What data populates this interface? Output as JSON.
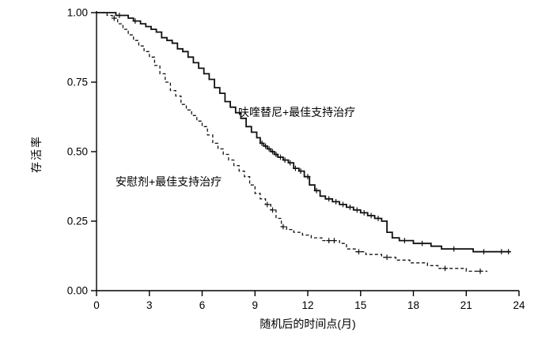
{
  "labels": {
    "ylabel": "存活率",
    "xlabel": "随机后的时间点(月)",
    "solid_annotation": "呋喹替尼+最佳支持治疗",
    "dashed_annotation": "安慰剂+最佳支持治疗"
  },
  "colors": {
    "background": "#ffffff",
    "line": "#111111",
    "axis": "#000000"
  },
  "chart_data": {
    "type": "line",
    "subtype": "kaplan-meier-step",
    "title": "",
    "xlabel": "随机后的时间点(月)",
    "ylabel": "存活率",
    "xlim": [
      0,
      24
    ],
    "ylim": [
      0,
      1.0
    ],
    "xticks": [
      0,
      3,
      6,
      9,
      12,
      15,
      18,
      21,
      24
    ],
    "yticks": [
      0.0,
      0.25,
      0.5,
      0.75,
      1.0
    ],
    "grid": false,
    "legend_position": "inline-annotations",
    "series": [
      {
        "name": "呋喹替尼+最佳支持治疗",
        "style": "solid",
        "points": [
          [
            0,
            1.0
          ],
          [
            0.9,
            1.0
          ],
          [
            1.1,
            0.99
          ],
          [
            1.5,
            0.99
          ],
          [
            1.8,
            0.98
          ],
          [
            2.1,
            0.97
          ],
          [
            2.5,
            0.96
          ],
          [
            2.8,
            0.95
          ],
          [
            3.1,
            0.94
          ],
          [
            3.4,
            0.93
          ],
          [
            3.7,
            0.91
          ],
          [
            4.0,
            0.9
          ],
          [
            4.3,
            0.89
          ],
          [
            4.6,
            0.87
          ],
          [
            4.9,
            0.86
          ],
          [
            5.2,
            0.84
          ],
          [
            5.5,
            0.82
          ],
          [
            5.8,
            0.8
          ],
          [
            6.1,
            0.78
          ],
          [
            6.4,
            0.76
          ],
          [
            6.7,
            0.73
          ],
          [
            7.0,
            0.71
          ],
          [
            7.3,
            0.68
          ],
          [
            7.6,
            0.66
          ],
          [
            7.9,
            0.64
          ],
          [
            8.2,
            0.62
          ],
          [
            8.5,
            0.59
          ],
          [
            8.8,
            0.57
          ],
          [
            9.1,
            0.55
          ],
          [
            9.3,
            0.53
          ],
          [
            9.5,
            0.52
          ],
          [
            9.7,
            0.51
          ],
          [
            9.9,
            0.5
          ],
          [
            10.1,
            0.49
          ],
          [
            10.3,
            0.48
          ],
          [
            10.6,
            0.47
          ],
          [
            10.9,
            0.46
          ],
          [
            11.2,
            0.44
          ],
          [
            11.5,
            0.43
          ],
          [
            11.8,
            0.41
          ],
          [
            12.1,
            0.38
          ],
          [
            12.4,
            0.36
          ],
          [
            12.7,
            0.34
          ],
          [
            13.0,
            0.33
          ],
          [
            13.4,
            0.32
          ],
          [
            13.8,
            0.31
          ],
          [
            14.2,
            0.3
          ],
          [
            14.6,
            0.29
          ],
          [
            15.0,
            0.28
          ],
          [
            15.4,
            0.27
          ],
          [
            15.8,
            0.26
          ],
          [
            16.2,
            0.25
          ],
          [
            16.5,
            0.21
          ],
          [
            16.8,
            0.19
          ],
          [
            17.2,
            0.18
          ],
          [
            18.0,
            0.17
          ],
          [
            19.0,
            0.16
          ],
          [
            19.6,
            0.15
          ],
          [
            21.0,
            0.15
          ],
          [
            21.4,
            0.14
          ],
          [
            23.5,
            0.14
          ]
        ],
        "censors": [
          [
            1.3,
            0.99
          ],
          [
            2.2,
            0.97
          ],
          [
            9.4,
            0.53
          ],
          [
            9.6,
            0.52
          ],
          [
            9.8,
            0.51
          ],
          [
            10.0,
            0.5
          ],
          [
            10.2,
            0.49
          ],
          [
            10.45,
            0.48
          ],
          [
            10.7,
            0.47
          ],
          [
            11.0,
            0.46
          ],
          [
            11.3,
            0.44
          ],
          [
            11.6,
            0.43
          ],
          [
            12.0,
            0.41
          ],
          [
            12.5,
            0.36
          ],
          [
            13.2,
            0.33
          ],
          [
            13.6,
            0.32
          ],
          [
            14.0,
            0.31
          ],
          [
            14.4,
            0.3
          ],
          [
            14.8,
            0.29
          ],
          [
            15.2,
            0.28
          ],
          [
            15.6,
            0.27
          ],
          [
            16.0,
            0.26
          ],
          [
            17.5,
            0.18
          ],
          [
            18.5,
            0.17
          ],
          [
            20.3,
            0.15
          ],
          [
            22.0,
            0.14
          ],
          [
            23.0,
            0.14
          ],
          [
            23.4,
            0.14
          ]
        ]
      },
      {
        "name": "安慰剂+最佳支持治疗",
        "style": "dashed",
        "points": [
          [
            0,
            1.0
          ],
          [
            0.6,
            0.99
          ],
          [
            0.9,
            0.98
          ],
          [
            1.2,
            0.96
          ],
          [
            1.5,
            0.94
          ],
          [
            1.8,
            0.92
          ],
          [
            2.1,
            0.9
          ],
          [
            2.4,
            0.88
          ],
          [
            2.7,
            0.86
          ],
          [
            3.0,
            0.84
          ],
          [
            3.3,
            0.81
          ],
          [
            3.6,
            0.78
          ],
          [
            3.9,
            0.75
          ],
          [
            4.2,
            0.72
          ],
          [
            4.5,
            0.7
          ],
          [
            4.8,
            0.67
          ],
          [
            5.1,
            0.65
          ],
          [
            5.4,
            0.63
          ],
          [
            5.7,
            0.61
          ],
          [
            6.0,
            0.59
          ],
          [
            6.3,
            0.56
          ],
          [
            6.6,
            0.53
          ],
          [
            6.9,
            0.51
          ],
          [
            7.2,
            0.49
          ],
          [
            7.5,
            0.47
          ],
          [
            7.8,
            0.45
          ],
          [
            8.1,
            0.43
          ],
          [
            8.4,
            0.41
          ],
          [
            8.7,
            0.38
          ],
          [
            9.0,
            0.35
          ],
          [
            9.3,
            0.33
          ],
          [
            9.6,
            0.31
          ],
          [
            9.9,
            0.29
          ],
          [
            10.2,
            0.26
          ],
          [
            10.5,
            0.23
          ],
          [
            10.8,
            0.22
          ],
          [
            11.2,
            0.21
          ],
          [
            11.7,
            0.2
          ],
          [
            12.2,
            0.19
          ],
          [
            12.8,
            0.18
          ],
          [
            13.8,
            0.17
          ],
          [
            14.2,
            0.15
          ],
          [
            14.7,
            0.14
          ],
          [
            15.3,
            0.13
          ],
          [
            16.2,
            0.12
          ],
          [
            17.0,
            0.11
          ],
          [
            17.8,
            0.1
          ],
          [
            18.8,
            0.09
          ],
          [
            19.4,
            0.08
          ],
          [
            20.5,
            0.08
          ],
          [
            21.0,
            0.07
          ],
          [
            22.2,
            0.07
          ]
        ],
        "censors": [
          [
            1.0,
            0.98
          ],
          [
            9.7,
            0.31
          ],
          [
            10.0,
            0.29
          ],
          [
            10.6,
            0.23
          ],
          [
            13.2,
            0.18
          ],
          [
            13.5,
            0.18
          ],
          [
            14.9,
            0.14
          ],
          [
            16.5,
            0.12
          ],
          [
            19.8,
            0.08
          ],
          [
            21.8,
            0.07
          ]
        ]
      }
    ],
    "annotations": [
      {
        "text": "呋喹替尼+最佳支持治疗",
        "series": "solid"
      },
      {
        "text": "安慰剂+最佳支持治疗",
        "series": "dashed"
      }
    ]
  }
}
